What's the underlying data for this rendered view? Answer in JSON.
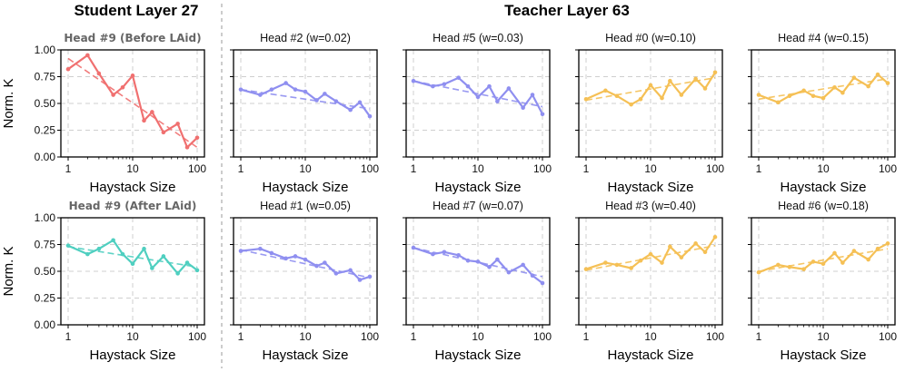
{
  "headers": {
    "student": "Student Layer 27",
    "teacher": "Teacher Layer 63"
  },
  "colors": {
    "student_before": "#f07070",
    "student_after": "#4fcfc0",
    "teacher_blue": "#8f8ff0",
    "teacher_orange": "#f5c055"
  },
  "chart_data": [
    {
      "type": "line",
      "title": "Head #9 (Before LAid)",
      "row": 0,
      "col": 0,
      "color_key": "student_before",
      "xlabel": "",
      "ylabel": "Norm. K",
      "xscale": "log",
      "xlim": [
        1,
        100
      ],
      "ylim": [
        0,
        1
      ],
      "yticks": [
        "0.00",
        "0.25",
        "0.50",
        "0.75",
        "1.00"
      ],
      "xticks": [
        "1",
        "10",
        "100"
      ],
      "x": [
        1,
        2,
        3,
        5,
        7,
        10,
        15,
        20,
        30,
        50,
        70,
        100
      ],
      "y": [
        0.82,
        0.95,
        0.78,
        0.58,
        0.65,
        0.76,
        0.34,
        0.42,
        0.23,
        0.31,
        0.09,
        0.18
      ],
      "trend": [
        0.92,
        0.09
      ]
    },
    {
      "type": "line",
      "title": "Head #2 (w=0.02)",
      "row": 0,
      "col": 1,
      "color_key": "teacher_blue",
      "xscale": "log",
      "xlim": [
        1,
        100
      ],
      "ylim": [
        0,
        1
      ],
      "yticks": [
        "0.00",
        "0.25",
        "0.50",
        "0.75",
        "1.00"
      ],
      "xticks": [
        "1",
        "10",
        "100"
      ],
      "x": [
        1,
        2,
        3,
        5,
        7,
        10,
        15,
        20,
        30,
        50,
        70,
        100
      ],
      "y": [
        0.63,
        0.58,
        0.63,
        0.69,
        0.63,
        0.61,
        0.53,
        0.59,
        0.52,
        0.44,
        0.51,
        0.38
      ],
      "trend": [
        0.63,
        0.45
      ]
    },
    {
      "type": "line",
      "title": "Head #5 (w=0.03)",
      "row": 0,
      "col": 2,
      "color_key": "teacher_blue",
      "xscale": "log",
      "xlim": [
        1,
        100
      ],
      "ylim": [
        0,
        1
      ],
      "yticks": [
        "0.00",
        "0.25",
        "0.50",
        "0.75",
        "1.00"
      ],
      "xticks": [
        "1",
        "10",
        "100"
      ],
      "x": [
        1,
        2,
        3,
        5,
        7,
        10,
        15,
        20,
        30,
        50,
        70,
        100
      ],
      "y": [
        0.71,
        0.66,
        0.68,
        0.74,
        0.66,
        0.56,
        0.66,
        0.52,
        0.64,
        0.46,
        0.58,
        0.4
      ],
      "trend": [
        0.71,
        0.47
      ]
    },
    {
      "type": "line",
      "title": "Head #0 (w=0.10)",
      "row": 0,
      "col": 3,
      "color_key": "teacher_orange",
      "xscale": "log",
      "xlim": [
        1,
        100
      ],
      "ylim": [
        0,
        1
      ],
      "yticks": [
        "0.00",
        "0.25",
        "0.50",
        "0.75",
        "1.00"
      ],
      "xticks": [
        "1",
        "10",
        "100"
      ],
      "x": [
        1,
        2,
        3,
        5,
        7,
        10,
        15,
        20,
        30,
        50,
        70,
        100
      ],
      "y": [
        0.54,
        0.62,
        0.57,
        0.49,
        0.54,
        0.67,
        0.55,
        0.71,
        0.58,
        0.73,
        0.64,
        0.79
      ],
      "trend": [
        0.53,
        0.74
      ]
    },
    {
      "type": "line",
      "title": "Head #4 (w=0.15)",
      "row": 0,
      "col": 4,
      "color_key": "teacher_orange",
      "xscale": "log",
      "xlim": [
        1,
        100
      ],
      "ylim": [
        0,
        1
      ],
      "yticks": [
        "0.00",
        "0.25",
        "0.50",
        "0.75",
        "1.00"
      ],
      "xticks": [
        "1",
        "10",
        "100"
      ],
      "x": [
        1,
        2,
        3,
        5,
        7,
        10,
        15,
        20,
        30,
        50,
        70,
        100
      ],
      "y": [
        0.58,
        0.51,
        0.57,
        0.62,
        0.57,
        0.55,
        0.65,
        0.6,
        0.74,
        0.66,
        0.77,
        0.69
      ],
      "trend": [
        0.54,
        0.73
      ]
    },
    {
      "type": "line",
      "title": "Head #9 (After LAid)",
      "row": 1,
      "col": 0,
      "color_key": "student_after",
      "xscale": "log",
      "xlim": [
        1,
        100
      ],
      "ylim": [
        0,
        1
      ],
      "yticks": [
        "0.00",
        "0.25",
        "0.50",
        "0.75",
        "1.00"
      ],
      "xticks": [
        "1",
        "10",
        "100"
      ],
      "x": [
        1,
        2,
        3,
        5,
        7,
        10,
        15,
        20,
        30,
        50,
        70,
        100
      ],
      "y": [
        0.74,
        0.66,
        0.71,
        0.79,
        0.66,
        0.57,
        0.71,
        0.53,
        0.64,
        0.48,
        0.58,
        0.51
      ],
      "trend": [
        0.73,
        0.54
      ]
    },
    {
      "type": "line",
      "title": "Head #1 (w=0.05)",
      "row": 1,
      "col": 1,
      "color_key": "teacher_blue",
      "xscale": "log",
      "xlim": [
        1,
        100
      ],
      "ylim": [
        0,
        1
      ],
      "yticks": [
        "0.00",
        "0.25",
        "0.50",
        "0.75",
        "1.00"
      ],
      "xticks": [
        "1",
        "10",
        "100"
      ],
      "x": [
        1,
        2,
        3,
        5,
        7,
        10,
        15,
        20,
        30,
        50,
        70,
        100
      ],
      "y": [
        0.69,
        0.71,
        0.67,
        0.62,
        0.64,
        0.61,
        0.55,
        0.58,
        0.48,
        0.51,
        0.42,
        0.45
      ],
      "trend": [
        0.7,
        0.44
      ]
    },
    {
      "type": "line",
      "title": "Head #7 (w=0.07)",
      "row": 1,
      "col": 2,
      "color_key": "teacher_blue",
      "xscale": "log",
      "xlim": [
        1,
        100
      ],
      "ylim": [
        0,
        1
      ],
      "yticks": [
        "0.00",
        "0.25",
        "0.50",
        "0.75",
        "1.00"
      ],
      "xticks": [
        "1",
        "10",
        "100"
      ],
      "x": [
        1,
        2,
        3,
        5,
        7,
        10,
        15,
        20,
        30,
        50,
        70,
        100
      ],
      "y": [
        0.72,
        0.66,
        0.68,
        0.65,
        0.6,
        0.59,
        0.54,
        0.61,
        0.49,
        0.56,
        0.46,
        0.39
      ],
      "trend": [
        0.72,
        0.45
      ]
    },
    {
      "type": "line",
      "title": "Head #3 (w=0.40)",
      "row": 1,
      "col": 3,
      "color_key": "teacher_orange",
      "xscale": "log",
      "xlim": [
        1,
        100
      ],
      "ylim": [
        0,
        1
      ],
      "yticks": [
        "0.00",
        "0.25",
        "0.50",
        "0.75",
        "1.00"
      ],
      "xticks": [
        "1",
        "10",
        "100"
      ],
      "x": [
        1,
        2,
        3,
        5,
        7,
        10,
        15,
        20,
        30,
        50,
        70,
        100
      ],
      "y": [
        0.52,
        0.58,
        0.56,
        0.53,
        0.6,
        0.66,
        0.58,
        0.73,
        0.63,
        0.76,
        0.68,
        0.82
      ],
      "trend": [
        0.51,
        0.74
      ]
    },
    {
      "type": "line",
      "title": "Head #6 (w=0.18)",
      "row": 1,
      "col": 4,
      "color_key": "teacher_orange",
      "xscale": "log",
      "xlim": [
        1,
        100
      ],
      "ylim": [
        0,
        1
      ],
      "yticks": [
        "0.00",
        "0.25",
        "0.50",
        "0.75",
        "1.00"
      ],
      "xticks": [
        "1",
        "10",
        "100"
      ],
      "x": [
        1,
        2,
        3,
        5,
        7,
        10,
        15,
        20,
        30,
        50,
        70,
        100
      ],
      "y": [
        0.49,
        0.56,
        0.54,
        0.52,
        0.59,
        0.57,
        0.67,
        0.58,
        0.69,
        0.61,
        0.71,
        0.76
      ],
      "trend": [
        0.5,
        0.71
      ]
    }
  ],
  "axis_labels": {
    "y": "Norm. K",
    "x": "Haystack Size"
  }
}
